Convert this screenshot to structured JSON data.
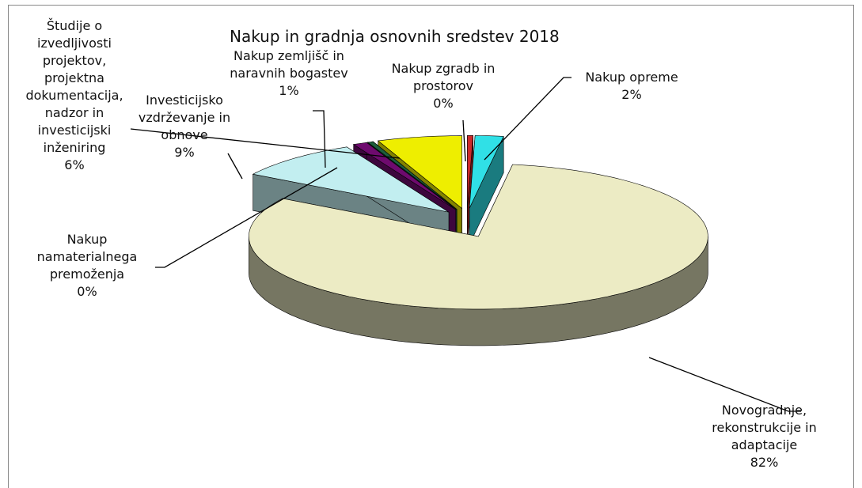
{
  "chart_data": {
    "type": "pie3d",
    "title": "Nakup in gradnja osnovnih sredstev 2018",
    "categories": [
      "Nakup zgradb in prostorov",
      "Nakup opreme",
      "Novogradnje, rekonstrukcije in adaptacije",
      "Investicijsko vzdrževanje in obnove",
      "Nakup zemljišč in naravnih bogastev",
      "Nakup namaterialnega premoženja",
      "Študije o izvedljivosti projektov, projektna dokumentacija, nadzor in investicijski inženiring"
    ],
    "values": [
      0.4,
      2,
      82,
      9,
      1,
      0.4,
      6
    ],
    "value_labels": [
      "0%",
      "2%",
      "82%",
      "9%",
      "1%",
      "0%",
      "6%"
    ],
    "colors": [
      "#cc2a2a",
      "#30e0e6",
      "#ecebc4",
      "#c2eef0",
      "#6e0a6e",
      "#1c5e3c",
      "#eeee00"
    ]
  }
}
